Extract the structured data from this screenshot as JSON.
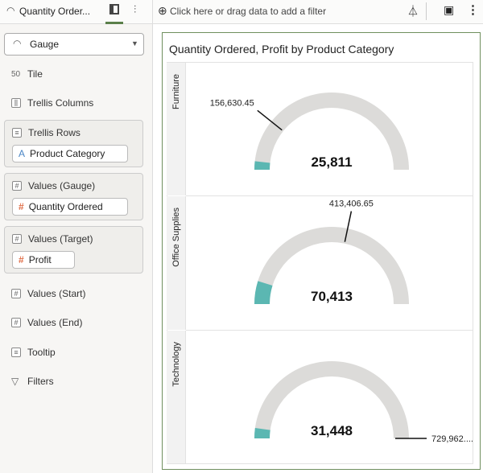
{
  "toolbar": {
    "viz_title": "Quantity Order...",
    "filter_placeholder": "Click here or drag data to add a filter"
  },
  "sidebar": {
    "viz_type": "Gauge",
    "items": [
      {
        "label": "Tile",
        "icon": "50"
      },
      {
        "label": "Trellis Columns"
      },
      {
        "label": "Values (Start)"
      },
      {
        "label": "Values (End)"
      },
      {
        "label": "Tooltip"
      },
      {
        "label": "Filters"
      }
    ],
    "groups": [
      {
        "label": "Trellis Rows",
        "pill": "Product Category",
        "pill_icon": "A"
      },
      {
        "label": "Values (Gauge)",
        "pill": "Quantity Ordered",
        "pill_icon": "#"
      },
      {
        "label": "Values (Target)",
        "pill": "Profit",
        "pill_icon": "#"
      }
    ]
  },
  "colors": {
    "fill": "#5bb7b2",
    "track": "#dcdbd9",
    "frame": "#6f8f5e"
  },
  "chart_data": {
    "type": "gauge",
    "title": "Quantity Ordered, Profit by Product Category",
    "max": 730000,
    "rows": [
      {
        "category": "Furniture",
        "value": 25811,
        "value_label": "25,811",
        "target": 156630.45,
        "target_label": "156,630.45"
      },
      {
        "category": "Office Supplies",
        "value": 70413,
        "value_label": "70,413",
        "target": 413406.65,
        "target_label": "413,406.65"
      },
      {
        "category": "Technology",
        "value": 31448,
        "value_label": "31,448",
        "target": 729962,
        "target_label": "729,962...."
      }
    ]
  }
}
